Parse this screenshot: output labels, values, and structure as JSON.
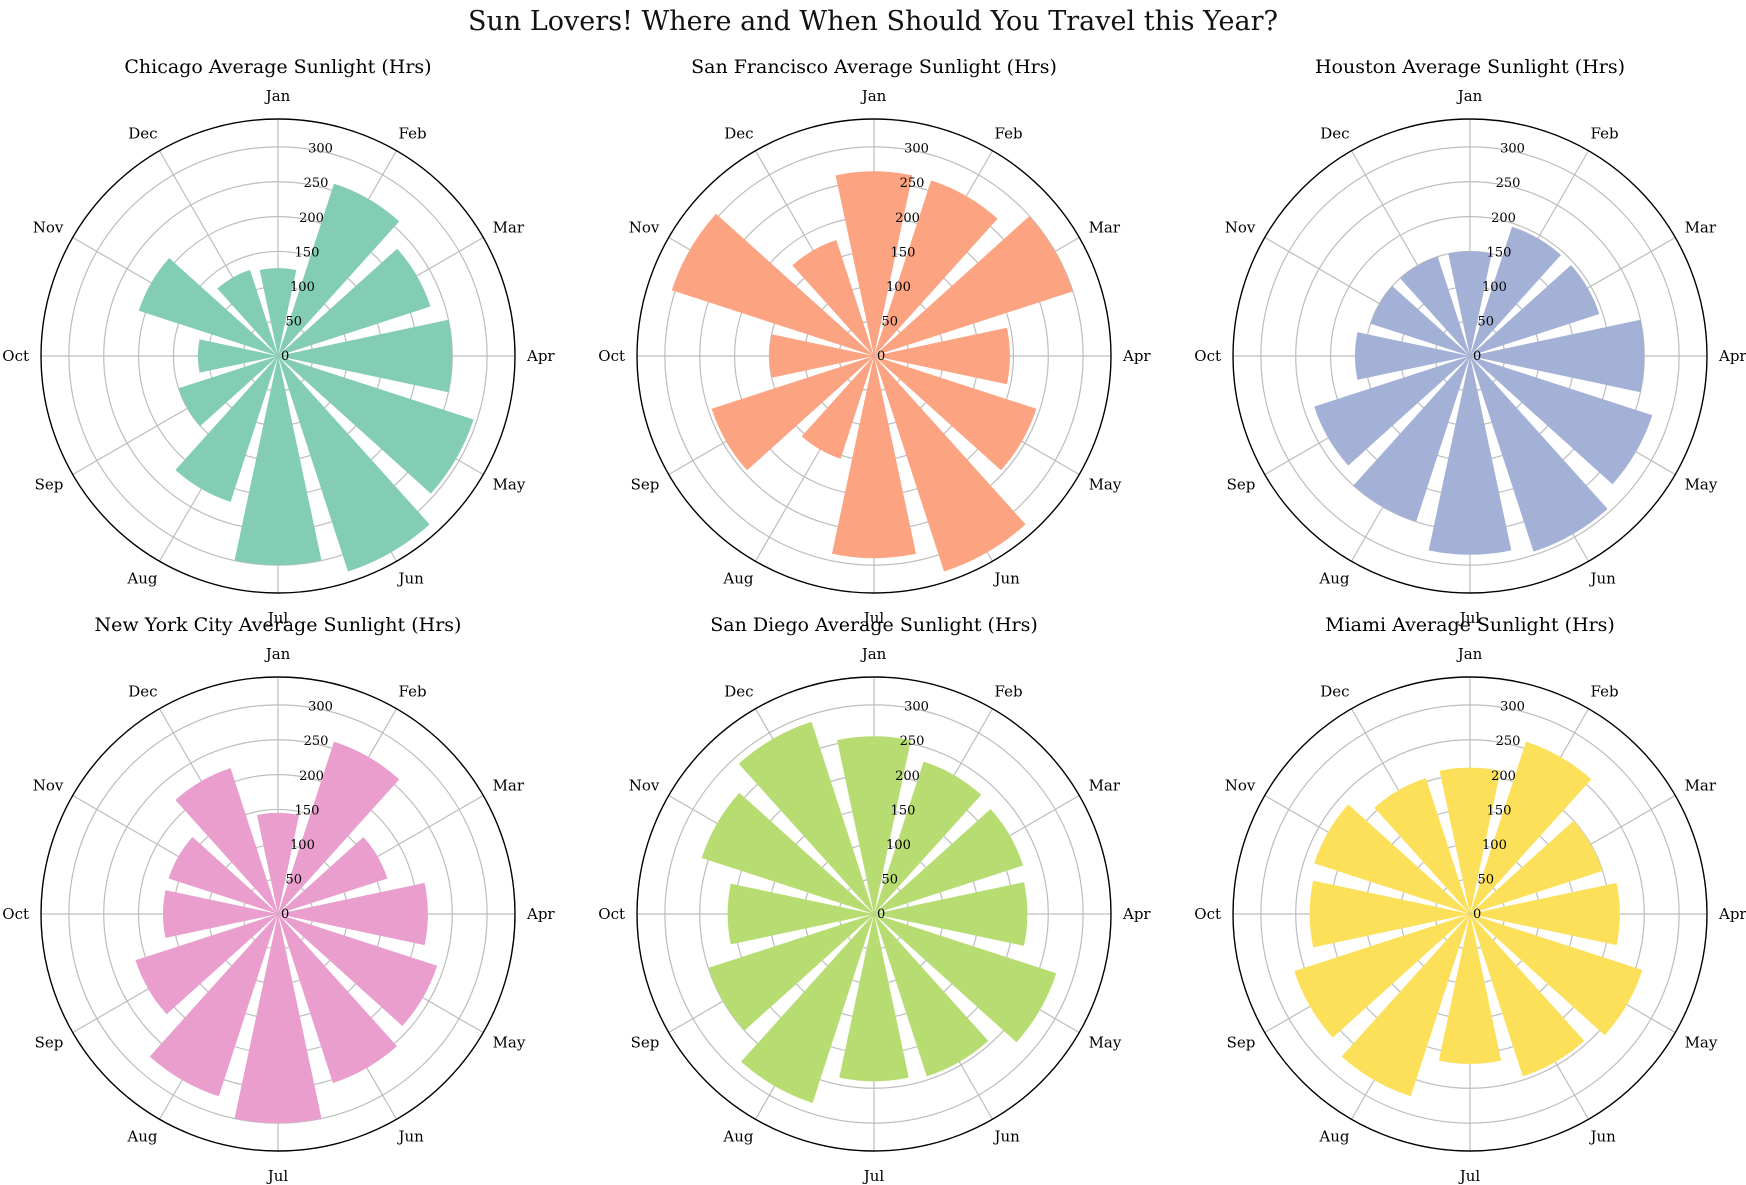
{
  "figure": {
    "title": "Sun Lovers! Where and When Should You Travel this Year?"
  },
  "chart_data": [
    {
      "type": "polar-bar",
      "title": "Chicago Average Sunlight (Hrs)",
      "color": "#83cdb5",
      "categories": [
        "Jan",
        "Feb",
        "Mar",
        "Apr",
        "May",
        "Jun",
        "Jul",
        "Aug",
        "Sep",
        "Oct",
        "Nov",
        "Dec"
      ],
      "values": [
        126,
        260,
        230,
        250,
        295,
        325,
        300,
        220,
        150,
        115,
        210,
        130
      ],
      "rlim": [
        0,
        340
      ],
      "rticks": [
        0,
        50,
        100,
        150,
        200,
        250,
        300
      ],
      "grid": true
    },
    {
      "type": "polar-bar",
      "title": "San Francisco Average Sunlight (Hrs)",
      "color": "#fca382",
      "categories": [
        "Jan",
        "Feb",
        "Mar",
        "Apr",
        "May",
        "Jun",
        "Jul",
        "Aug",
        "Sep",
        "Oct",
        "Nov",
        "Dec"
      ],
      "values": [
        265,
        265,
        300,
        195,
        245,
        325,
        290,
        155,
        245,
        150,
        305,
        175
      ],
      "rlim": [
        0,
        340
      ],
      "rticks": [
        0,
        50,
        100,
        150,
        200,
        250,
        300
      ],
      "grid": true
    },
    {
      "type": "polar-bar",
      "title": "Houston Average Sunlight (Hrs)",
      "color": "#a4b1d7",
      "categories": [
        "Jan",
        "Feb",
        "Mar",
        "Apr",
        "May",
        "Jun",
        "Jul",
        "Aug",
        "Sep",
        "Oct",
        "Nov",
        "Dec"
      ],
      "values": [
        150,
        195,
        195,
        250,
        275,
        295,
        285,
        250,
        235,
        165,
        150,
        150
      ],
      "rlim": [
        0,
        340
      ],
      "rticks": [
        0,
        50,
        100,
        150,
        200,
        250,
        300
      ],
      "grid": true
    },
    {
      "type": "polar-bar",
      "title": "New York City Average Sunlight (Hrs)",
      "color": "#e99ecd",
      "categories": [
        "Jan",
        "Feb",
        "Mar",
        "Apr",
        "May",
        "Jun",
        "Jul",
        "Aug",
        "Sep",
        "Oct",
        "Nov",
        "Dec"
      ],
      "values": [
        145,
        260,
        165,
        215,
        240,
        255,
        300,
        275,
        215,
        165,
        165,
        220
      ],
      "rlim": [
        0,
        340
      ],
      "rticks": [
        0,
        50,
        100,
        150,
        200,
        250,
        300
      ],
      "grid": true
    },
    {
      "type": "polar-bar",
      "title": "San Diego Average Sunlight (Hrs)",
      "color": "#b7dd72",
      "categories": [
        "Jan",
        "Feb",
        "Mar",
        "Apr",
        "May",
        "Jun",
        "Jul",
        "Aug",
        "Sep",
        "Oct",
        "Nov",
        "Dec"
      ],
      "values": [
        255,
        230,
        225,
        220,
        275,
        245,
        240,
        285,
        250,
        210,
        260,
        290
      ],
      "rlim": [
        0,
        340
      ],
      "rticks": [
        0,
        50,
        100,
        150,
        200,
        250,
        300
      ],
      "grid": true
    },
    {
      "type": "polar-bar",
      "title": "Miami Average Sunlight (Hrs)",
      "color": "#fde059",
      "categories": [
        "Jan",
        "Feb",
        "Mar",
        "Apr",
        "May",
        "Jun",
        "Jul",
        "Aug",
        "Sep",
        "Oct",
        "Nov",
        "Dec"
      ],
      "values": [
        210,
        260,
        200,
        215,
        260,
        245,
        215,
        275,
        265,
        230,
        235,
        205
      ],
      "rlim": [
        0,
        340
      ],
      "rticks": [
        0,
        50,
        100,
        150,
        200,
        250,
        300
      ],
      "grid": true
    }
  ]
}
